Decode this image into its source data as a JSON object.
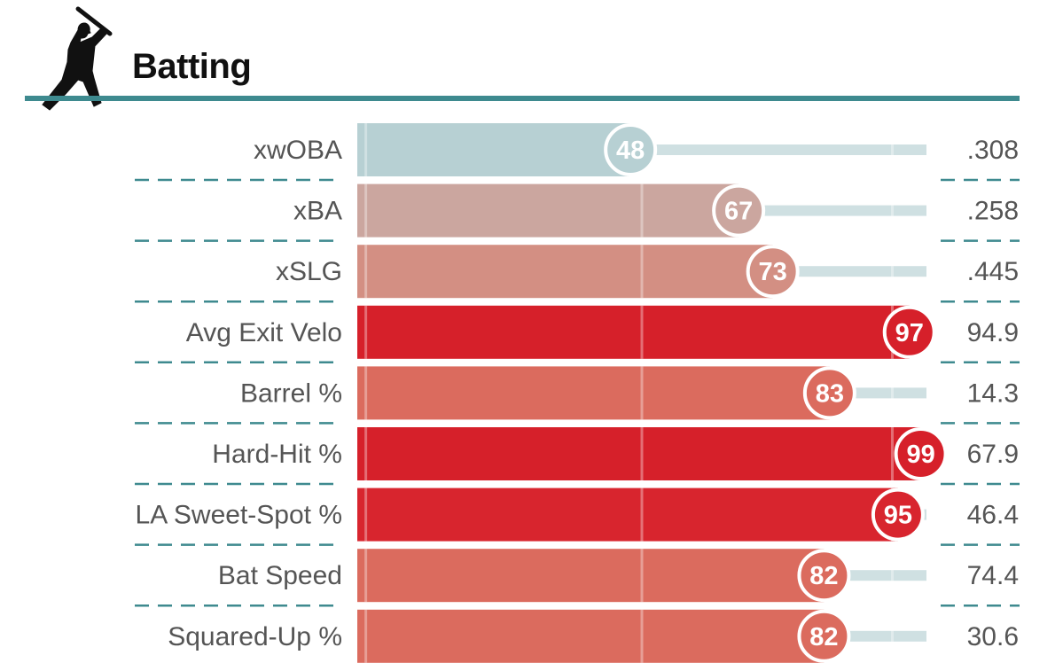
{
  "header": {
    "title": "Batting",
    "icon": "batter-silhouette-icon",
    "rule_color": "#3e8a8f"
  },
  "chart_data": {
    "type": "bar",
    "orientation": "horizontal",
    "title": "Batting",
    "xlim": [
      0,
      100
    ],
    "grid": false,
    "reference_lines": [
      50
    ],
    "categories": [
      "xwOBA",
      "xBA",
      "xSLG",
      "Avg Exit Velo",
      "Barrel %",
      "Hard-Hit %",
      "LA Sweet-Spot %",
      "Bat Speed",
      "Squared-Up %"
    ],
    "series": [
      {
        "name": "Percentile",
        "values": [
          48,
          67,
          73,
          97,
          83,
          99,
          95,
          82,
          82
        ]
      }
    ],
    "stat_values": [
      ".308",
      ".258",
      ".445",
      "94.9",
      "14.3",
      "67.9",
      "46.4",
      "74.4",
      "30.6"
    ],
    "bar_colors": [
      "#b7d0d3",
      "#cba69f",
      "#d38f83",
      "#d6202a",
      "#db6b5e",
      "#d6202a",
      "#d8252e",
      "#db6b5e",
      "#db6b5e"
    ],
    "track_color": "#cfe0e2",
    "divider_color": "#3e8a8f"
  }
}
